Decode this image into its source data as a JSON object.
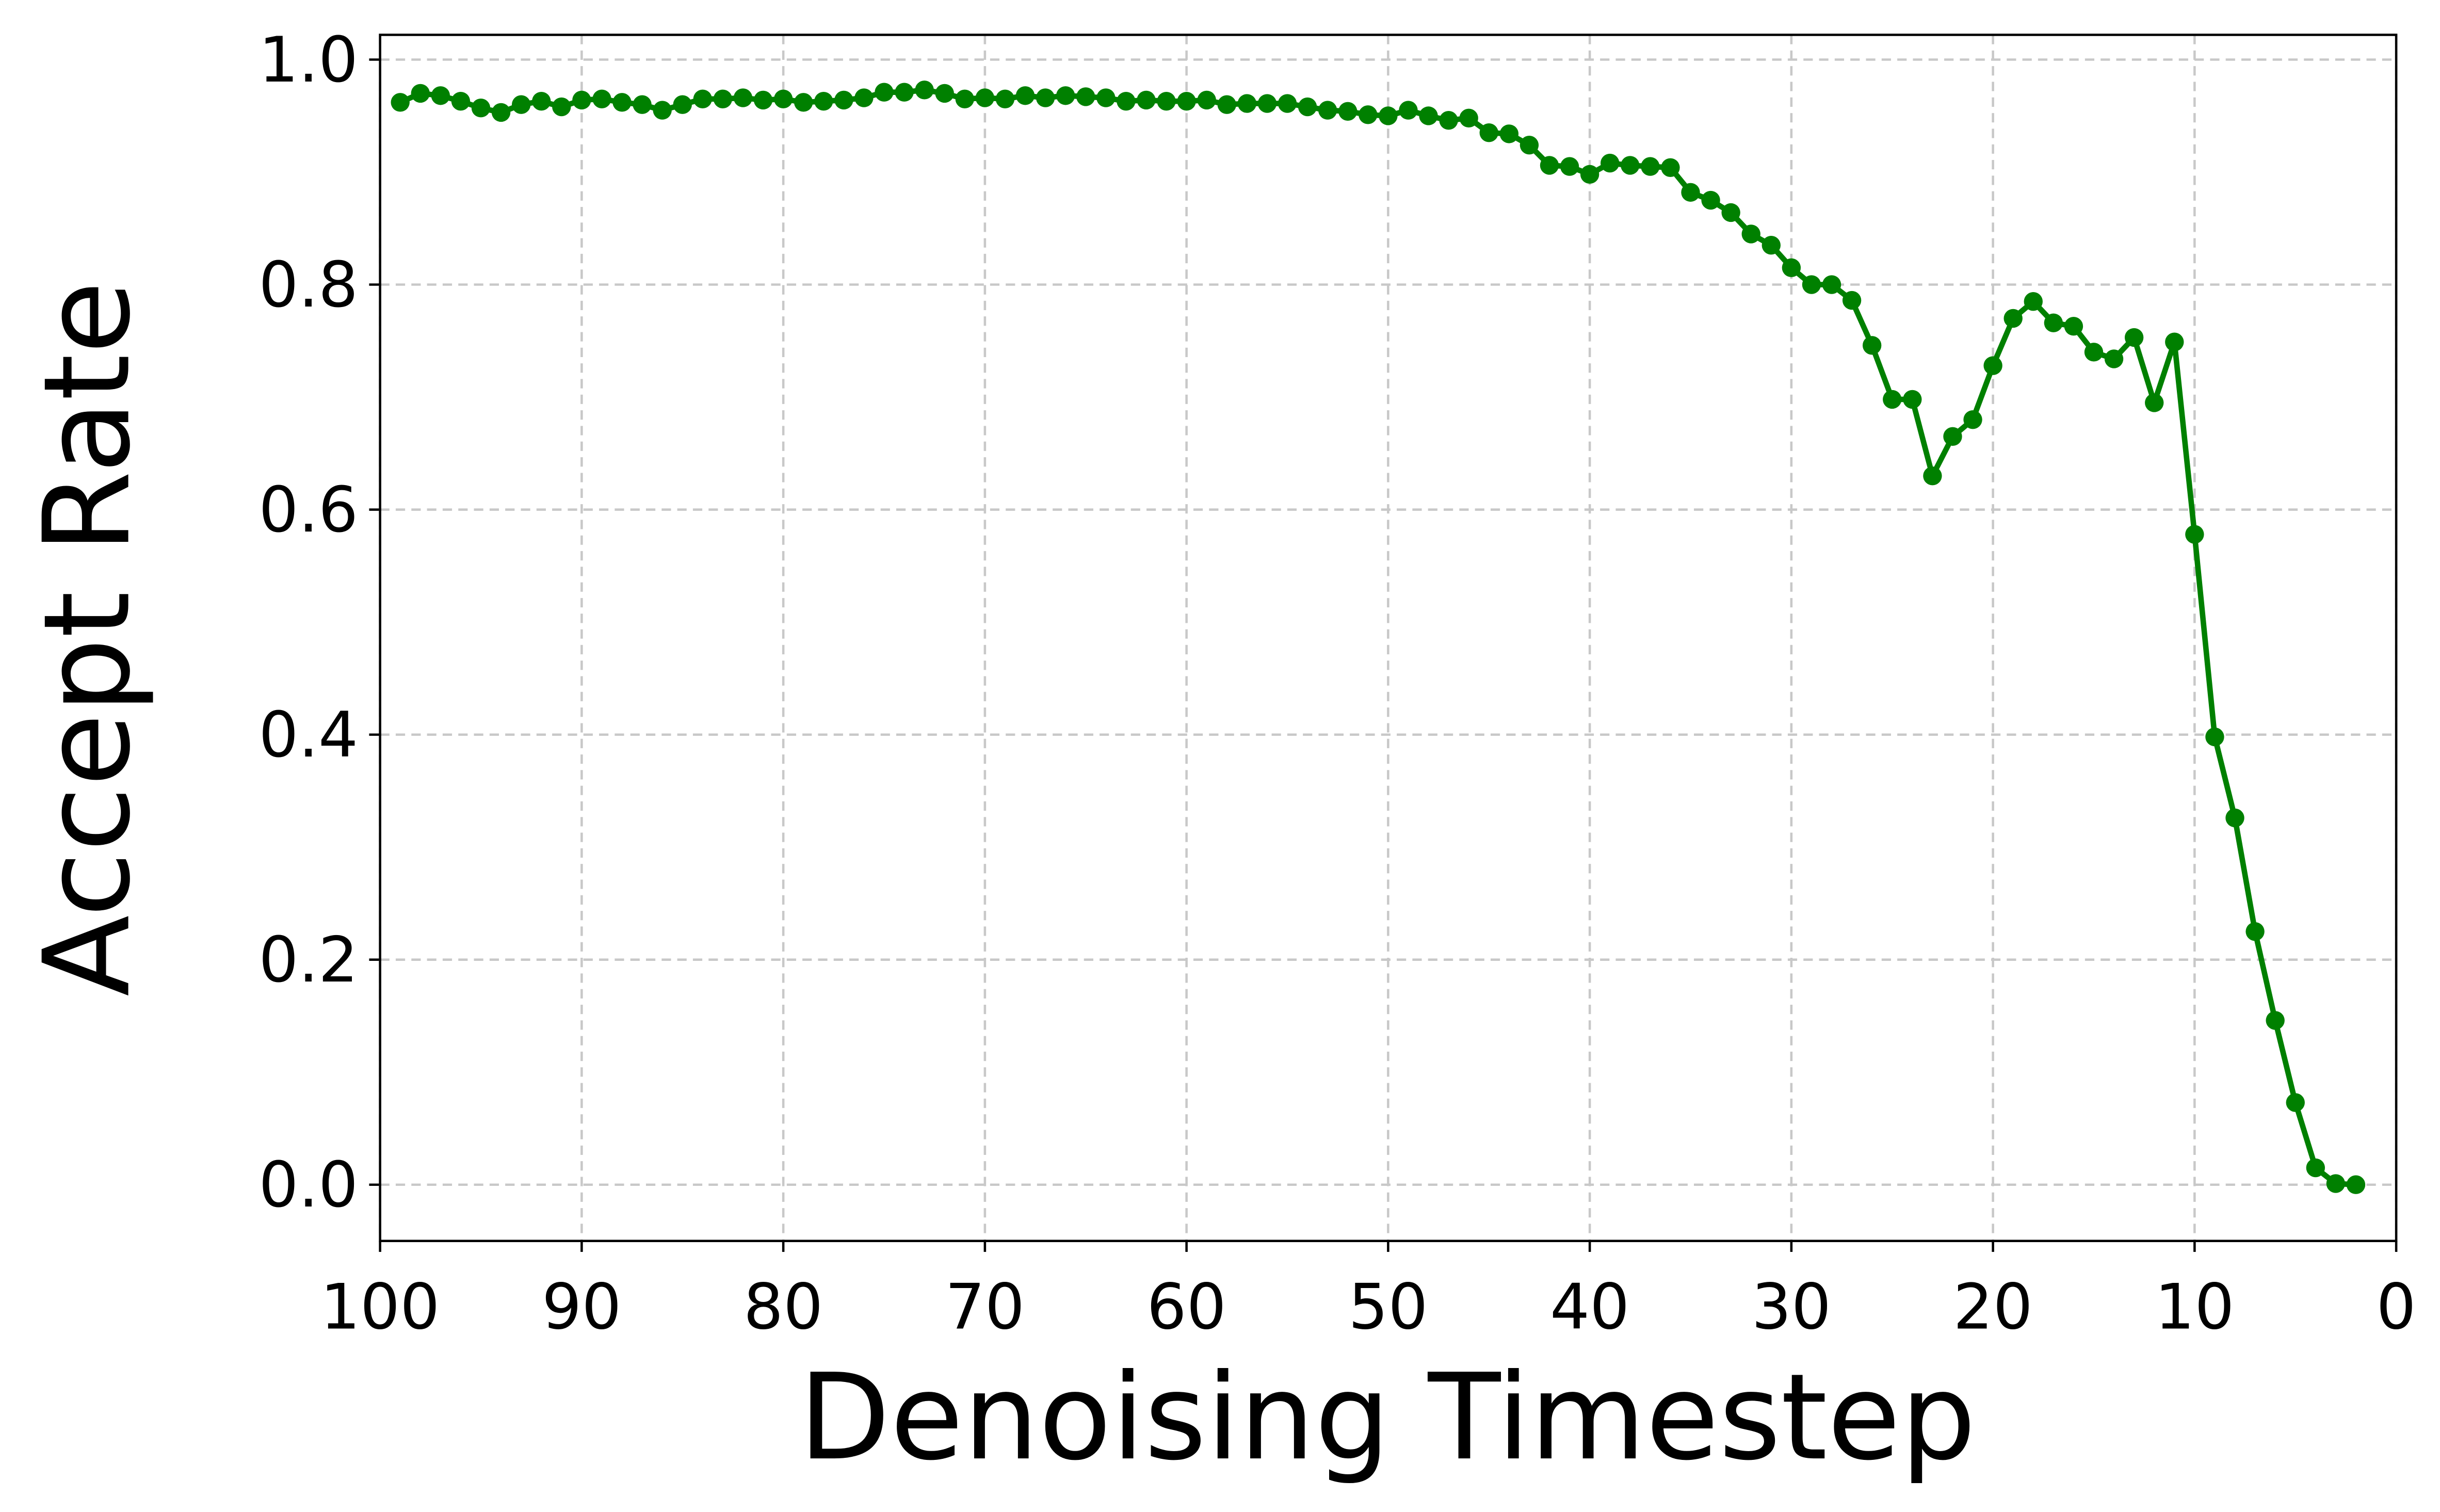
{
  "chart_data": {
    "type": "line",
    "x_label": "Denoising Timestep",
    "y_label": "Accept Rate",
    "x": [
      99,
      98,
      97,
      96,
      95,
      94,
      93,
      92,
      91,
      90,
      89,
      88,
      87,
      86,
      85,
      84,
      83,
      82,
      81,
      80,
      79,
      78,
      77,
      76,
      75,
      74,
      73,
      72,
      71,
      70,
      69,
      68,
      67,
      66,
      65,
      64,
      63,
      62,
      61,
      60,
      59,
      58,
      57,
      56,
      55,
      54,
      53,
      52,
      51,
      50,
      49,
      48,
      47,
      46,
      45,
      44,
      43,
      42,
      41,
      40,
      39,
      38,
      37,
      36,
      35,
      34,
      33,
      32,
      31,
      30,
      29,
      28,
      27,
      26,
      25,
      24,
      23,
      22,
      21,
      20,
      19,
      18,
      17,
      16,
      15,
      14,
      13,
      12,
      11,
      10,
      9,
      8,
      7,
      6,
      5,
      4,
      3,
      2
    ],
    "series": [
      {
        "color": "#008000",
        "values": [
          0.962,
          0.97,
          0.968,
          0.963,
          0.957,
          0.953,
          0.96,
          0.963,
          0.958,
          0.964,
          0.965,
          0.962,
          0.96,
          0.955,
          0.96,
          0.965,
          0.965,
          0.966,
          0.964,
          0.965,
          0.962,
          0.963,
          0.964,
          0.966,
          0.971,
          0.971,
          0.973,
          0.97,
          0.965,
          0.966,
          0.965,
          0.968,
          0.966,
          0.968,
          0.967,
          0.966,
          0.963,
          0.964,
          0.963,
          0.963,
          0.964,
          0.96,
          0.961,
          0.961,
          0.961,
          0.958,
          0.955,
          0.954,
          0.951,
          0.95,
          0.955,
          0.95,
          0.946,
          0.948,
          0.935,
          0.934,
          0.924,
          0.906,
          0.905,
          0.898,
          0.908,
          0.906,
          0.905,
          0.904,
          0.882,
          0.875,
          0.864,
          0.845,
          0.835,
          0.815,
          0.8,
          0.8,
          0.786,
          0.746,
          0.698,
          0.698,
          0.63,
          0.665,
          0.68,
          0.728,
          0.77,
          0.785,
          0.766,
          0.763,
          0.74,
          0.734,
          0.753,
          0.695,
          0.749,
          0.578,
          0.398,
          0.326,
          0.225,
          0.146,
          0.073,
          0.015,
          0.001,
          0.0
        ]
      }
    ],
    "xlim": [
      100,
      0
    ],
    "ylim": [
      -0.05,
      1.022
    ],
    "xticks": [
      100,
      90,
      80,
      70,
      60,
      50,
      40,
      30,
      20,
      10,
      0
    ],
    "yticks": [
      {
        "value": 0,
        "label": "0.0"
      },
      {
        "value": 0.2,
        "label": "0.2"
      },
      {
        "value": 0.4,
        "label": "0.4"
      },
      {
        "value": 0.6,
        "label": "0.6"
      },
      {
        "value": 0.8,
        "label": "0.8"
      },
      {
        "value": 1,
        "label": "1.0"
      }
    ],
    "grid": true
  }
}
